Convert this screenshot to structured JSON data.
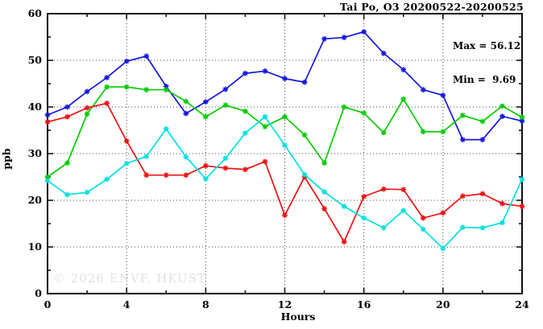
{
  "header": {
    "title": "Tai Po, O3 20200522-20200525"
  },
  "annotations": {
    "max_label": "Max = 56.12",
    "min_label": "Min =  9.69"
  },
  "watermark": "© 2026 ENVF, HKUST",
  "chart_data": {
    "type": "line",
    "title": "Tai Po, O3 20200522-20200525",
    "xlabel": "Hours",
    "ylabel": "ppb",
    "xlim": [
      0,
      24
    ],
    "ylim": [
      0,
      60
    ],
    "x_major_ticks": [
      0,
      4,
      8,
      12,
      16,
      20,
      24
    ],
    "x_minor_step": 2,
    "y_major_ticks": [
      0,
      10,
      20,
      30,
      40,
      50,
      60
    ],
    "y_minor_step": 5,
    "grid": "dotted-at-major-ticks",
    "legend_position": "none",
    "marker": "asterisk",
    "max_value": 56.12,
    "min_value": 9.69,
    "x": [
      0,
      1,
      2,
      3,
      4,
      5,
      6,
      7,
      8,
      9,
      10,
      11,
      12,
      13,
      14,
      15,
      16,
      17,
      18,
      19,
      20,
      21,
      22,
      23,
      24
    ],
    "series": [
      {
        "name": "blue",
        "color": "#1717dd",
        "values": [
          38.3,
          40.0,
          43.3,
          46.3,
          49.8,
          50.9,
          44.4,
          38.6,
          41.1,
          43.8,
          47.2,
          47.7,
          46.1,
          45.3,
          54.6,
          54.9,
          56.12,
          51.5,
          48.0,
          43.7,
          42.5,
          33.0,
          33.0,
          38.0,
          37.0
        ]
      },
      {
        "name": "green",
        "color": "#00cc00",
        "values": [
          25.0,
          28.0,
          38.5,
          44.3,
          44.3,
          43.7,
          43.7,
          41.2,
          37.9,
          40.4,
          39.1,
          35.8,
          37.9,
          34.0,
          28.0,
          40.0,
          38.7,
          34.5,
          41.7,
          34.7,
          34.7,
          38.2,
          36.9,
          40.2,
          37.8
        ]
      },
      {
        "name": "red",
        "color": "#ee1111",
        "values": [
          36.8,
          37.9,
          39.8,
          40.8,
          32.7,
          25.4,
          25.4,
          25.4,
          27.4,
          26.9,
          26.6,
          28.3,
          16.8,
          25.0,
          18.2,
          11.1,
          20.8,
          22.4,
          22.3,
          16.2,
          17.3,
          20.9,
          21.4,
          19.3,
          18.7
        ]
      },
      {
        "name": "cyan",
        "color": "#00e0e0",
        "values": [
          24.2,
          21.2,
          21.7,
          24.5,
          27.9,
          29.4,
          35.3,
          29.3,
          24.6,
          29.0,
          34.4,
          37.9,
          31.8,
          25.5,
          21.8,
          18.7,
          16.2,
          14.1,
          17.8,
          13.8,
          9.69,
          14.2,
          14.1,
          15.2,
          24.5
        ]
      }
    ]
  }
}
